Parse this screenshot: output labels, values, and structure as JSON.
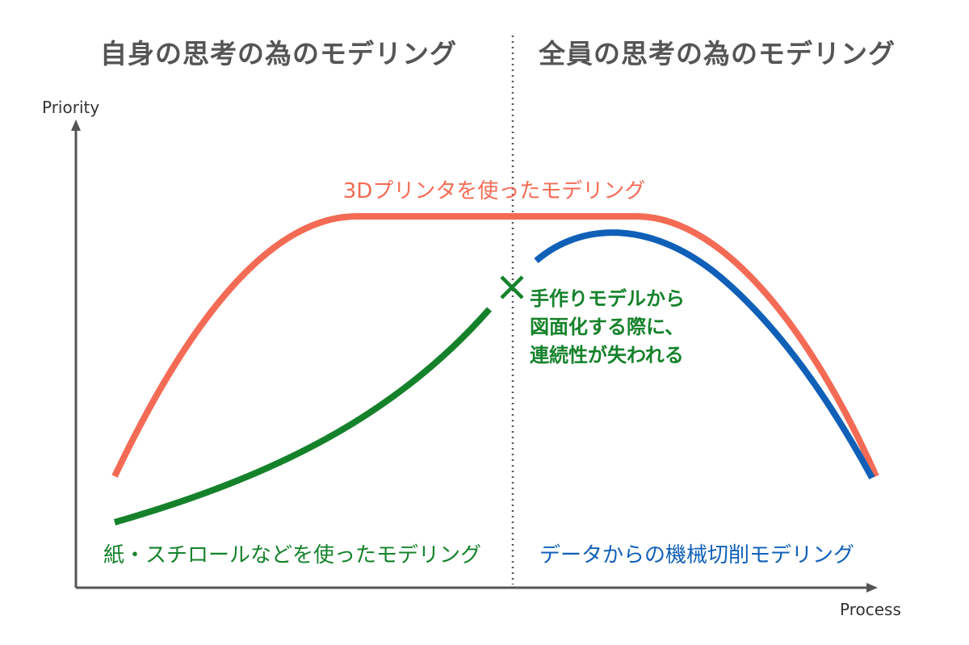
{
  "headers": {
    "left": "自身の思考の為のモデリング",
    "right": "全員の思考の為のモデリング"
  },
  "axes": {
    "y_label": "Priority",
    "x_label": "Process"
  },
  "curves": {
    "red": {
      "label": "3Dプリンタを使ったモデリング",
      "color": "#F46B55"
    },
    "green": {
      "label": "紙・スチロールなどを使ったモデリング",
      "color": "#15822B"
    },
    "blue": {
      "label": "データからの機械切削モデリング",
      "color": "#1060B8"
    }
  },
  "break_note": {
    "marker": "×",
    "lines": [
      "手作りモデルから",
      "図面化する際に、",
      "連続性が失われる"
    ],
    "color": "#15822B"
  },
  "colors": {
    "axis": "#555555",
    "divider": "#555555",
    "title": "#555555"
  }
}
